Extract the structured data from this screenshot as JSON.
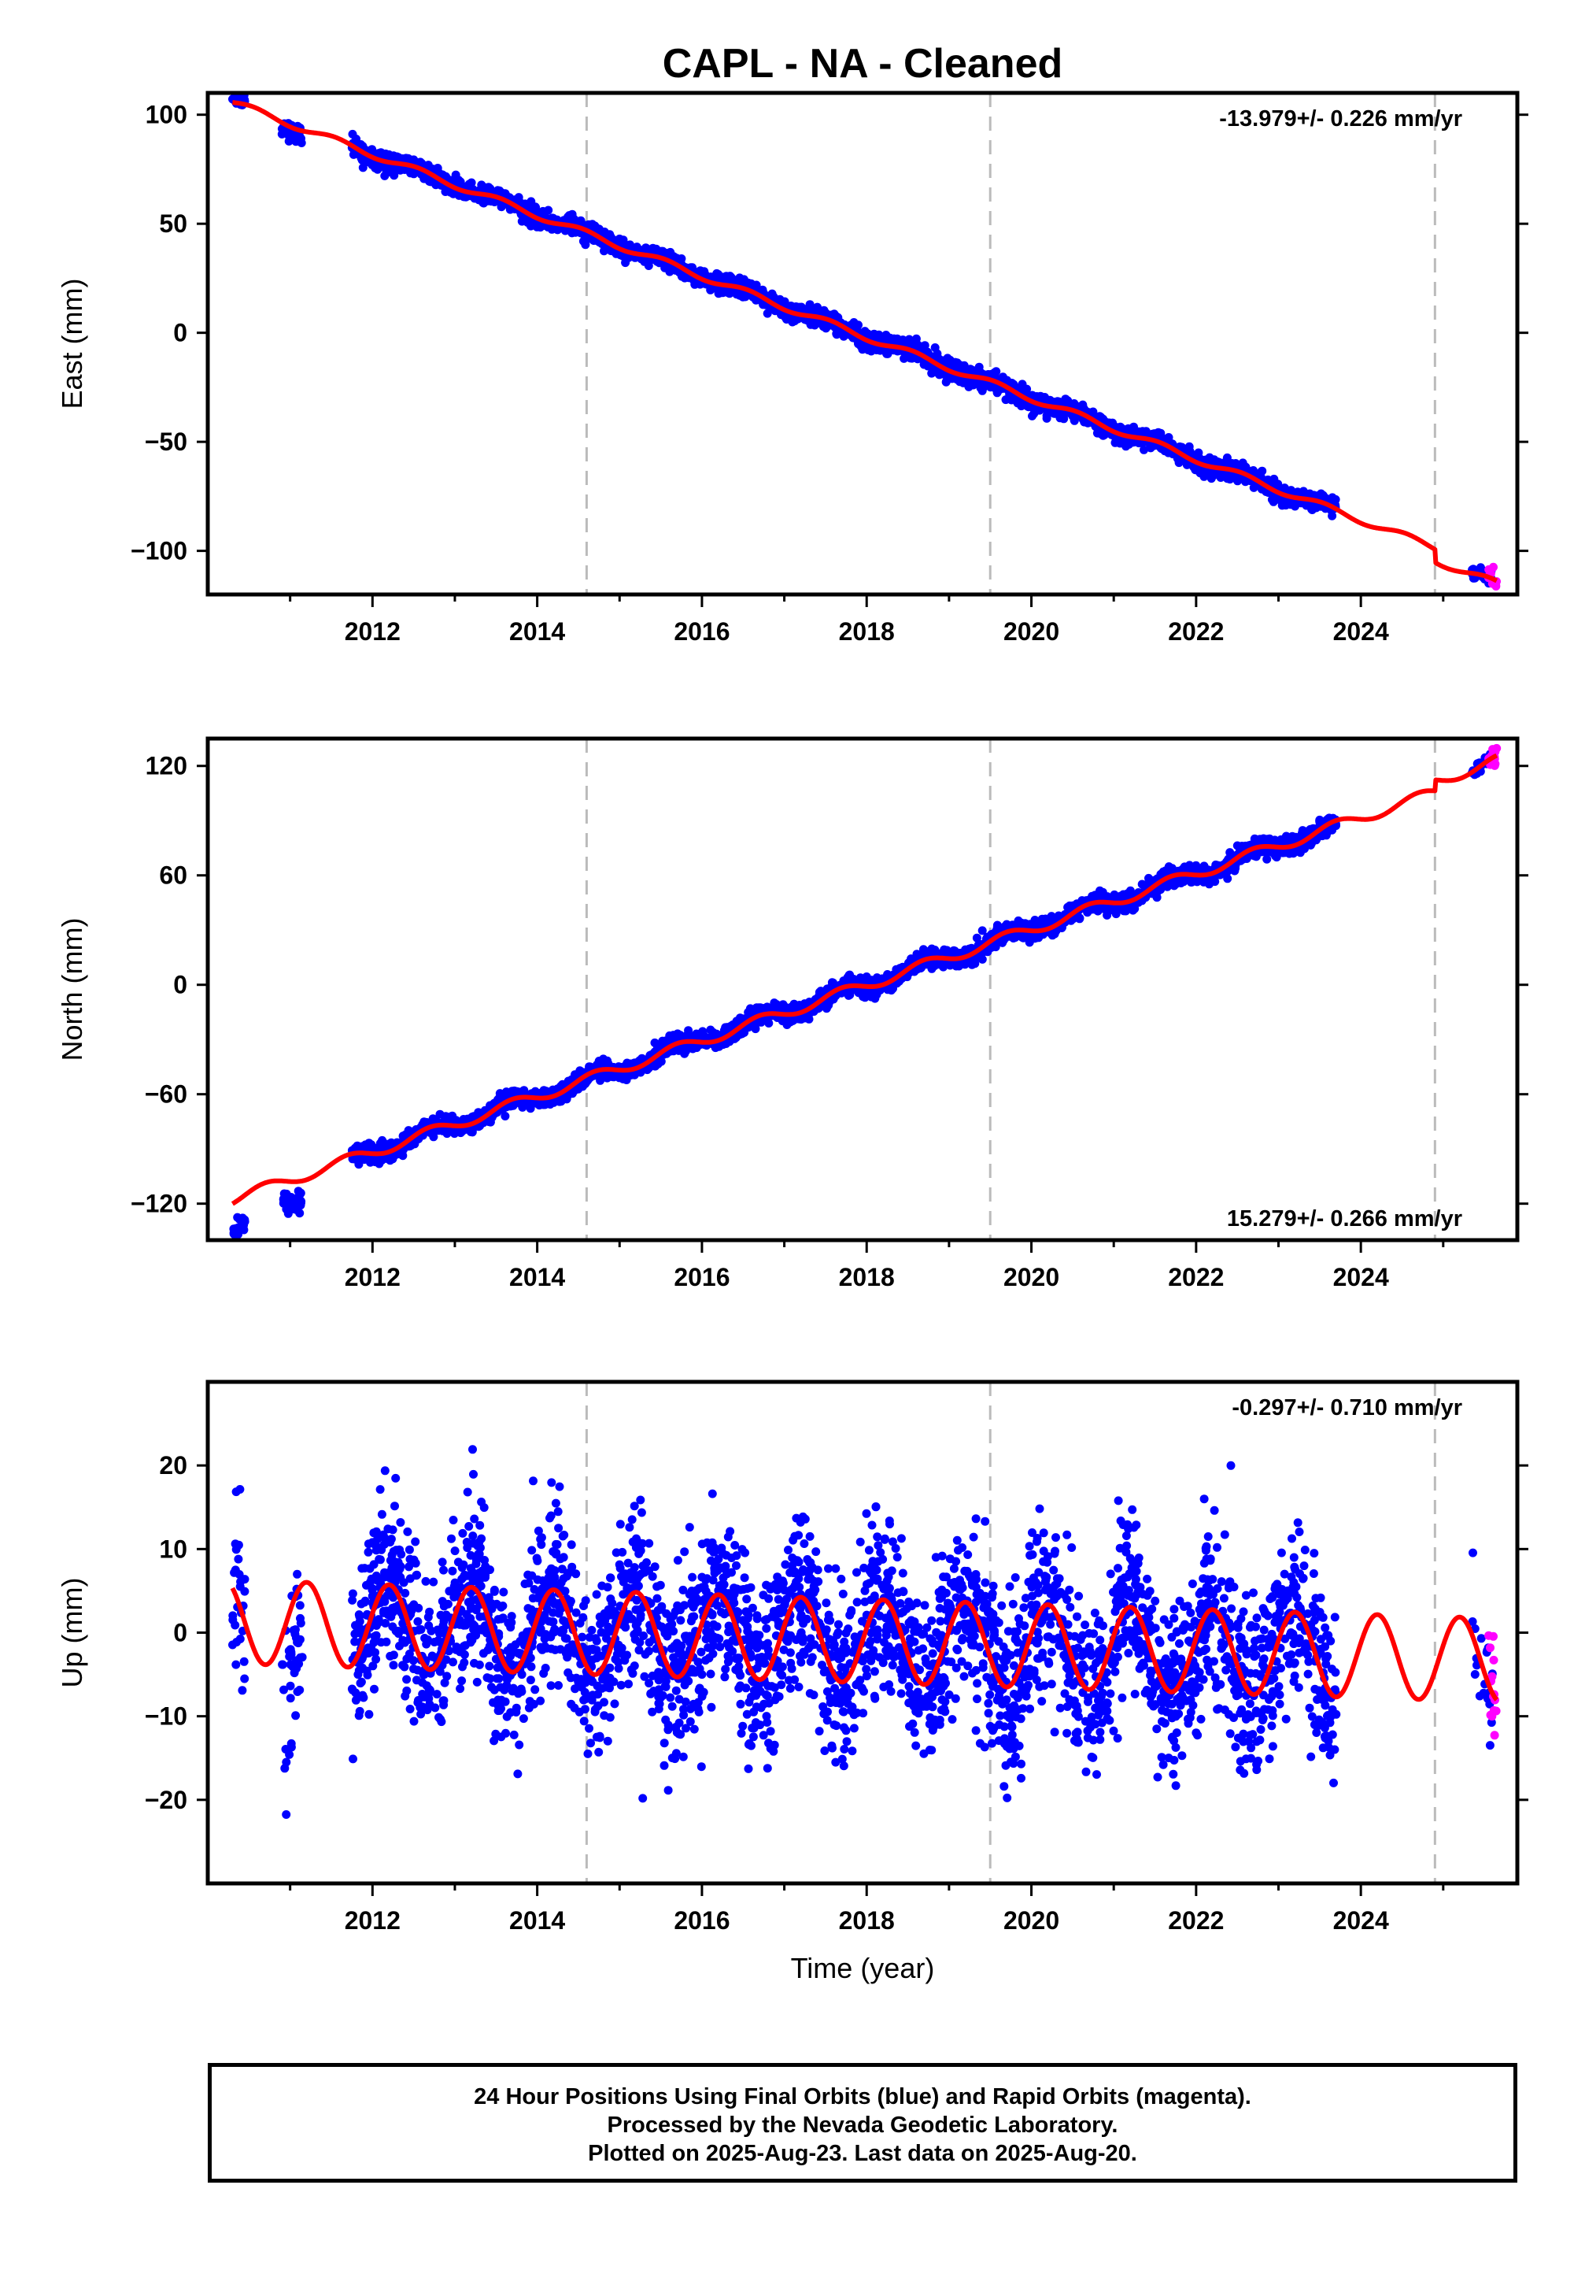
{
  "title": "CAPL  - NA - Cleaned",
  "x_axis_label": "Time (year)",
  "footer": {
    "line1": "24 Hour Positions Using Final Orbits (blue) and Rapid Orbits (magenta).",
    "line2": "Processed by the Nevada Geodetic Laboratory.",
    "line3": "Plotted on 2025-Aug-23. Last data on 2025-Aug-20."
  },
  "colors": {
    "final_orbits": "#0000ff",
    "rapid_orbits": "#ff00ff",
    "model": "#ff0000",
    "event_line": "#bbbbbb"
  },
  "chart_data": [
    {
      "type": "scatter",
      "component": "East",
      "ylabel": "East (mm)",
      "xlim": [
        2010.0,
        2025.9
      ],
      "ylim": [
        -120,
        110
      ],
      "yticks": [
        100,
        50,
        0,
        -50,
        -100
      ],
      "xticks": [
        2012,
        2014,
        2016,
        2018,
        2020,
        2022,
        2024
      ],
      "rate_label": "-13.979+/- 0.226 mm/yr",
      "rate_position": "top-right",
      "event_lines": [
        2014.6,
        2019.5,
        2024.9
      ],
      "model": {
        "offset_at_2018": -2,
        "trend": -13.979,
        "seasonal_amp": 1.5,
        "seasonal_phase": 0.3,
        "steps": [
          {
            "t": 2024.9,
            "dy": -6
          }
        ]
      },
      "data_segments": [
        {
          "t0": 2010.3,
          "t1": 2010.45,
          "level_shift": 2,
          "noise": 1.6,
          "density": 60
        },
        {
          "t0": 2010.9,
          "t1": 2011.15,
          "level_shift": -2,
          "noise": 2.0,
          "density": 60
        },
        {
          "t0": 2011.75,
          "t1": 2023.7,
          "level_shift": 0,
          "noise": 2.0,
          "density": 160
        }
      ],
      "rapid_segment": {
        "t0": 2025.55,
        "t1": 2025.65,
        "noise": 2.5,
        "count": 14
      },
      "late_final_segment": {
        "t0": 2025.35,
        "t1": 2025.6,
        "noise": 1.5,
        "count": 20
      }
    },
    {
      "type": "scatter",
      "component": "North",
      "ylabel": "North (mm)",
      "xlim": [
        2010.0,
        2025.9
      ],
      "ylim": [
        -140,
        135
      ],
      "yticks": [
        120,
        60,
        0,
        -60,
        -120
      ],
      "xticks": [
        2012,
        2014,
        2016,
        2018,
        2020,
        2022,
        2024
      ],
      "rate_label": "15.279+/- 0.266 mm/yr",
      "rate_position": "bottom-right",
      "event_lines": [
        2014.6,
        2019.5,
        2024.9
      ],
      "model": {
        "offset_at_2018": 0,
        "trend": 15.279,
        "seasonal_amp": 3.0,
        "seasonal_phase": 0.45,
        "steps": [
          {
            "t": 2024.9,
            "dy": 6
          }
        ]
      },
      "data_segments": [
        {
          "t0": 2010.3,
          "t1": 2010.45,
          "level_shift": -15,
          "noise": 2.5,
          "density": 60
        },
        {
          "t0": 2010.9,
          "t1": 2011.15,
          "level_shift": -12,
          "noise": 3.0,
          "density": 60
        },
        {
          "t0": 2011.75,
          "t1": 2023.7,
          "level_shift": 0,
          "noise": 2.4,
          "density": 160
        }
      ],
      "rapid_segment": {
        "t0": 2025.55,
        "t1": 2025.65,
        "noise": 2.0,
        "count": 14
      },
      "late_final_segment": {
        "t0": 2025.35,
        "t1": 2025.6,
        "noise": 1.5,
        "count": 20
      }
    },
    {
      "type": "scatter",
      "component": "Up",
      "ylabel": "Up (mm)",
      "xlim": [
        2010.0,
        2025.9
      ],
      "ylim": [
        -30,
        30
      ],
      "yticks": [
        20,
        10,
        0,
        -10,
        -20
      ],
      "xticks": [
        2012,
        2014,
        2016,
        2018,
        2020,
        2022,
        2024
      ],
      "rate_label": "-0.297+/- 0.710 mm/yr",
      "rate_position": "top-right",
      "event_lines": [
        2014.6,
        2019.5,
        2024.9
      ],
      "model": {
        "offset_at_2018": -1,
        "trend": -0.297,
        "seasonal_amp": 5.0,
        "seasonal_phase": 0.95,
        "steps": []
      },
      "data_segments": [
        {
          "t0": 2010.3,
          "t1": 2010.45,
          "level_shift": 0,
          "noise": 5.0,
          "density": 60
        },
        {
          "t0": 2010.9,
          "t1": 2011.15,
          "level_shift": -6,
          "noise": 6.0,
          "density": 60
        },
        {
          "t0": 2011.75,
          "t1": 2023.7,
          "level_shift": 0,
          "noise": 5.0,
          "density": 160
        }
      ],
      "rapid_segment": {
        "t0": 2025.55,
        "t1": 2025.65,
        "noise": 5.0,
        "count": 14
      },
      "late_final_segment": {
        "t0": 2025.35,
        "t1": 2025.6,
        "noise": 4.0,
        "count": 20
      }
    }
  ]
}
